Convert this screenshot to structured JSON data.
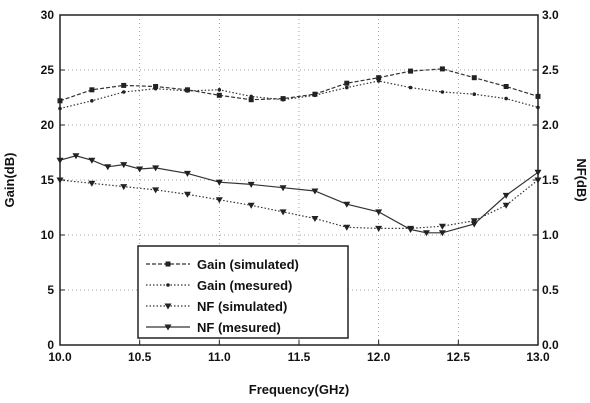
{
  "chart_data": {
    "type": "line",
    "xlabel": "Frequency(GHz)",
    "ylabel": "Gain(dB)",
    "y2label": "NF(dB)",
    "xlim": [
      10.0,
      13.0
    ],
    "ylim": [
      0,
      30
    ],
    "y2lim": [
      0.0,
      3.0
    ],
    "x_ticks": [
      "10.0",
      "10.5",
      "11.0",
      "11.5",
      "12.0",
      "12.5",
      "13.0"
    ],
    "y_ticks": [
      "0",
      "5",
      "10",
      "15",
      "20",
      "25",
      "30"
    ],
    "y2_ticks": [
      "0.0",
      "0.5",
      "1.0",
      "1.5",
      "2.0",
      "2.5",
      "3.0"
    ],
    "grid": true,
    "legend_position": "lower-left",
    "series": [
      {
        "name": "Gain (simulated)",
        "axis": "left",
        "line": "dashed",
        "marker": "square",
        "color": "#333333",
        "points": [
          [
            10.0,
            22.2
          ],
          [
            10.2,
            23.2
          ],
          [
            10.4,
            23.6
          ],
          [
            10.6,
            23.5
          ],
          [
            10.8,
            23.2
          ],
          [
            11.0,
            22.7
          ],
          [
            11.2,
            22.3
          ],
          [
            11.4,
            22.4
          ],
          [
            11.6,
            22.8
          ],
          [
            11.8,
            23.8
          ],
          [
            12.0,
            24.3
          ],
          [
            12.2,
            24.9
          ],
          [
            12.4,
            25.1
          ],
          [
            12.6,
            24.3
          ],
          [
            12.8,
            23.5
          ],
          [
            13.0,
            22.6
          ]
        ]
      },
      {
        "name": "Gain (mesured)",
        "axis": "left",
        "line": "dotted",
        "marker": "dot",
        "color": "#333333",
        "points": [
          [
            10.0,
            21.5
          ],
          [
            10.2,
            22.2
          ],
          [
            10.4,
            23.0
          ],
          [
            10.6,
            23.3
          ],
          [
            10.8,
            23.1
          ],
          [
            11.0,
            23.2
          ],
          [
            11.2,
            22.6
          ],
          [
            11.4,
            22.3
          ],
          [
            11.6,
            22.7
          ],
          [
            11.8,
            23.4
          ],
          [
            12.0,
            24.0
          ],
          [
            12.2,
            23.4
          ],
          [
            12.4,
            23.0
          ],
          [
            12.6,
            22.8
          ],
          [
            12.8,
            22.4
          ],
          [
            13.0,
            21.6
          ]
        ]
      },
      {
        "name": "NF (simulated)",
        "axis": "right",
        "line": "dotted",
        "marker": "triangle-down",
        "color": "#333333",
        "points": [
          [
            10.0,
            1.5
          ],
          [
            10.2,
            1.47
          ],
          [
            10.4,
            1.44
          ],
          [
            10.6,
            1.41
          ],
          [
            10.8,
            1.37
          ],
          [
            11.0,
            1.32
          ],
          [
            11.2,
            1.27
          ],
          [
            11.4,
            1.21
          ],
          [
            11.6,
            1.15
          ],
          [
            11.8,
            1.07
          ],
          [
            12.0,
            1.06
          ],
          [
            12.2,
            1.06
          ],
          [
            12.4,
            1.08
          ],
          [
            12.6,
            1.13
          ],
          [
            12.8,
            1.27
          ],
          [
            13.0,
            1.5
          ]
        ]
      },
      {
        "name": "NF (mesured)",
        "axis": "right",
        "line": "solid",
        "marker": "triangle-down",
        "color": "#333333",
        "points": [
          [
            10.0,
            1.68
          ],
          [
            10.1,
            1.72
          ],
          [
            10.2,
            1.68
          ],
          [
            10.3,
            1.62
          ],
          [
            10.4,
            1.64
          ],
          [
            10.5,
            1.6
          ],
          [
            10.6,
            1.61
          ],
          [
            10.8,
            1.56
          ],
          [
            11.0,
            1.48
          ],
          [
            11.2,
            1.46
          ],
          [
            11.4,
            1.43
          ],
          [
            11.6,
            1.4
          ],
          [
            11.8,
            1.28
          ],
          [
            12.0,
            1.21
          ],
          [
            12.2,
            1.05
          ],
          [
            12.3,
            1.02
          ],
          [
            12.4,
            1.02
          ],
          [
            12.6,
            1.1
          ],
          [
            12.8,
            1.36
          ],
          [
            13.0,
            1.57
          ]
        ]
      }
    ]
  }
}
